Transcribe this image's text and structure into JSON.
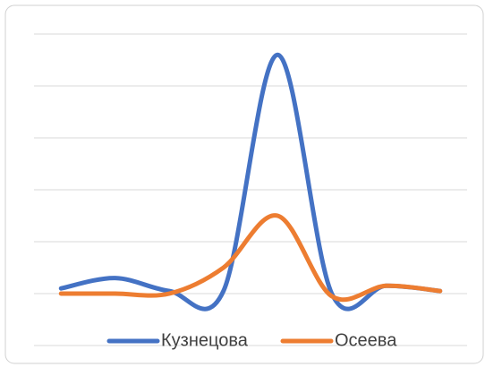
{
  "chart_data": {
    "type": "line",
    "categories": [
      null,
      null,
      null,
      null,
      null,
      null,
      null,
      null
    ],
    "series": [
      {
        "name": "Кузнецова",
        "color": "#4472c4",
        "values": [
          1.1,
          1.3,
          1.05,
          1.05,
          5.6,
          1.0,
          1.15,
          1.05
        ]
      },
      {
        "name": "Осеева",
        "color": "#ed7d31",
        "values": [
          1.0,
          1.0,
          1.0,
          1.5,
          2.5,
          0.95,
          1.15,
          1.05
        ]
      }
    ],
    "ylim": [
      0,
      6
    ],
    "yticks": [
      0,
      1,
      2,
      3,
      4,
      5,
      6
    ],
    "grid": true,
    "smooth": true,
    "legend": "bottom"
  }
}
